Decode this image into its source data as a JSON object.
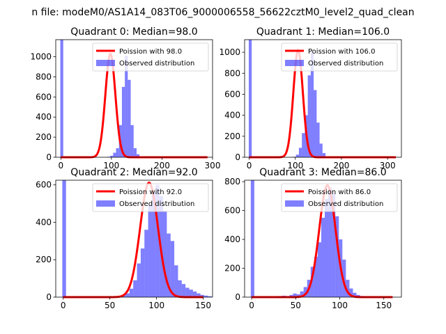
{
  "suptitle": "n file: modeM0/AS1A14_083T06_9000006558_56622cztM0_level2_quad_clean",
  "colors": {
    "observed": "#0000ff",
    "poisson": "#ff0000"
  },
  "chart_data": [
    {
      "type": "bar",
      "title": "Quadrant 0: Median=98.0",
      "xlim": [
        -10,
        300
      ],
      "ylim": [
        0,
        1170
      ],
      "xticks": [
        0,
        100,
        200,
        300
      ],
      "yticks": [
        0,
        200,
        400,
        600,
        800,
        1000
      ],
      "legend": {
        "position": "top-right",
        "entries": [
          "Poission with 98.0",
          "Observed distribution"
        ]
      },
      "median": 98.0,
      "poisson_x_range": [
        0,
        290
      ],
      "bins": {
        "start": -1,
        "width": 5.8,
        "values": [
          1170,
          0,
          0,
          0,
          0,
          0,
          0,
          0,
          0,
          0,
          0,
          0,
          0,
          0,
          0,
          0,
          5,
          15,
          45,
          90,
          320,
          700,
          1010,
          770,
          320,
          90,
          30,
          10,
          5,
          0
        ]
      }
    },
    {
      "type": "bar",
      "title": "Quadrant 1: Median=106.0",
      "xlim": [
        -10,
        330
      ],
      "ylim": [
        0,
        1120
      ],
      "xticks": [
        0,
        100,
        200,
        300
      ],
      "yticks": [
        0,
        200,
        400,
        600,
        800,
        1000
      ],
      "legend": {
        "position": "top-right",
        "entries": [
          "Poission with 106.0",
          "Observed distribution"
        ]
      },
      "median": 106.0,
      "poisson_x_range": [
        0,
        318
      ],
      "bins": {
        "start": -1,
        "width": 6.4,
        "values": [
          1120,
          0,
          0,
          0,
          0,
          0,
          0,
          0,
          0,
          0,
          0,
          0,
          0,
          0,
          0,
          5,
          25,
          90,
          230,
          400,
          780,
          1000,
          640,
          330,
          130,
          40,
          10,
          5,
          0
        ]
      }
    },
    {
      "type": "bar",
      "title": "Quadrant 2: Median=92.0",
      "xlim": [
        -8,
        160
      ],
      "ylim": [
        0,
        625
      ],
      "xticks": [
        0,
        50,
        100,
        150
      ],
      "yticks": [
        0,
        200,
        400,
        600
      ],
      "legend": {
        "position": "top-right",
        "entries": [
          "Poission with 92.0",
          "Observed distribution"
        ]
      },
      "median": 92.0,
      "poisson_x_range": [
        0,
        150
      ],
      "bins": {
        "start": -1,
        "width": 4.0,
        "values": [
          625,
          0,
          0,
          0,
          0,
          0,
          0,
          0,
          0,
          0,
          0,
          0,
          0,
          0,
          2,
          4,
          10,
          20,
          45,
          90,
          180,
          260,
          360,
          490,
          560,
          600,
          540,
          460,
          340,
          300,
          170,
          90,
          70,
          50,
          40,
          30,
          20,
          12,
          8,
          5
        ]
      }
    },
    {
      "type": "bar",
      "title": "Quadrant 3: Median=86.0",
      "xlim": [
        -8,
        170
      ],
      "ylim": [
        0,
        810
      ],
      "xticks": [
        0,
        50,
        100,
        150
      ],
      "yticks": [
        0,
        200,
        400,
        600,
        800
      ],
      "legend": {
        "position": "top-right",
        "entries": [
          "Poission with 86.0",
          "Observed distribution"
        ]
      },
      "median": 86.0,
      "poisson_x_range": [
        0,
        160
      ],
      "bins": {
        "start": -1,
        "width": 4.0,
        "values": [
          810,
          0,
          0,
          0,
          5,
          3,
          5,
          4,
          8,
          10,
          6,
          15,
          25,
          20,
          40,
          70,
          120,
          210,
          280,
          380,
          550,
          680,
          760,
          720,
          560,
          400,
          260,
          120,
          60,
          30,
          15,
          8,
          5,
          3,
          2,
          1,
          0,
          0,
          0,
          0,
          0
        ]
      }
    }
  ]
}
